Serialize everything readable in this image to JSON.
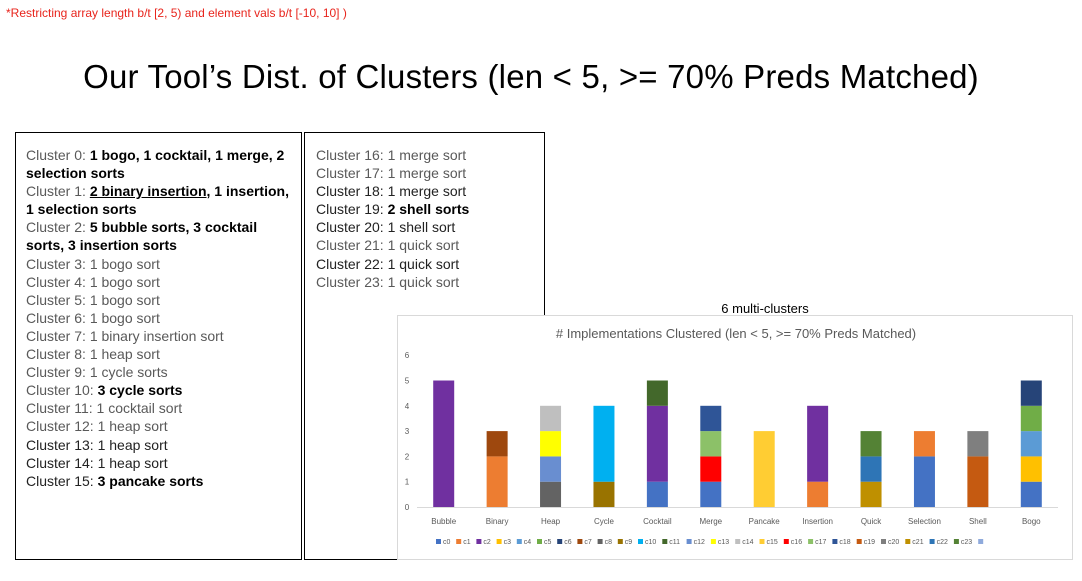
{
  "note": "*Restricting  array length b/t [2, 5) and element vals b/t [-10, 10] )",
  "title": "Our Tool’s Dist. of Clusters (len < 5, >= 70% Preds Matched)",
  "clusters_left": [
    {
      "label": "Cluster 0: ",
      "plain": "",
      "bold": "1 bogo, 1 cocktail, 1 merge, 2 selection sorts",
      "underline": ""
    },
    {
      "label": "Cluster 1: ",
      "plain": "",
      "underline": "2 binary insertion",
      "bold": ", 1 insertion, 1 selection sorts"
    },
    {
      "label": "Cluster 2: ",
      "plain": "",
      "bold": "5 bubble sorts, 3 cocktail sorts, 3 insertion sorts",
      "underline": ""
    },
    {
      "label": "Cluster 3: ",
      "plain": "1 bogo sort",
      "bold": "",
      "underline": ""
    },
    {
      "label": "Cluster 4: ",
      "plain": "1 bogo sort",
      "bold": "",
      "underline": ""
    },
    {
      "label": "Cluster 5: ",
      "plain": "1 bogo sort",
      "bold": "",
      "underline": ""
    },
    {
      "label": "Cluster 6: ",
      "plain": "1 bogo sort",
      "bold": "",
      "underline": ""
    },
    {
      "label": "Cluster 7: ",
      "plain": "1 binary insertion sort",
      "bold": "",
      "underline": ""
    },
    {
      "label": "Cluster 8: ",
      "plain": "1 heap sort",
      "bold": "",
      "underline": ""
    },
    {
      "label": "Cluster 9: ",
      "plain": "1 cycle sorts",
      "bold": "",
      "underline": ""
    },
    {
      "label": "Cluster 10: ",
      "plain": "",
      "bold": "3 cycle sorts",
      "underline": ""
    },
    {
      "label": "Cluster 11: ",
      "plain": "1 cocktail sort",
      "bold": "",
      "underline": ""
    },
    {
      "label": "Cluster 12: ",
      "plain": "1 heap sort",
      "bold": "",
      "underline": ""
    },
    {
      "label": "Cluster 13: ",
      "plain": "1 heap sort",
      "bold": "",
      "underline": "",
      "dark": true
    },
    {
      "label": "Cluster 14: ",
      "plain": "1 heap sort",
      "bold": "",
      "underline": "",
      "dark": true
    },
    {
      "label": "Cluster 15: ",
      "plain": "",
      "bold": "3 pancake sorts",
      "underline": "",
      "dark": true
    }
  ],
  "clusters_right": [
    {
      "label": "Cluster 16: ",
      "plain": "1 merge sort",
      "bold": "",
      "underline": ""
    },
    {
      "label": "Cluster 17: ",
      "plain": "1 merge sort",
      "bold": "",
      "underline": ""
    },
    {
      "label": "Cluster 18: ",
      "plain": "1 merge sort",
      "bold": "",
      "underline": "",
      "dark": true
    },
    {
      "label": "Cluster 19: ",
      "plain": "",
      "bold": "2 shell sorts",
      "underline": "",
      "dark": true
    },
    {
      "label": "Cluster 20: ",
      "plain": "1 shell sort",
      "bold": "",
      "underline": "",
      "dark": true
    },
    {
      "label": "Cluster 21: ",
      "plain": "1 quick sort",
      "bold": "",
      "underline": ""
    },
    {
      "label": "Cluster 22: ",
      "plain": "1 quick sort",
      "bold": "",
      "underline": "",
      "dark": true
    },
    {
      "label": "Cluster 23: ",
      "plain": "1 quick sort",
      "bold": "",
      "underline": ""
    }
  ],
  "multi_clusters_label": "6 multi-clusters",
  "chart_data": {
    "type": "bar",
    "stacked": true,
    "title": "# Implementations Clustered (len < 5, >= 70% Preds Matched)",
    "xlabel": "",
    "ylabel": "",
    "ylim": [
      0,
      6
    ],
    "yticks": [
      "0",
      "1",
      "2",
      "3",
      "4",
      "5",
      "6"
    ],
    "grid": false,
    "legend_position": "bottom",
    "categories": [
      "Bubble",
      "Binary",
      "Heap",
      "Cycle",
      "Cocktail",
      "Merge",
      "Pancake",
      "Insertion",
      "Quick",
      "Selection",
      "Shell",
      "Bogo"
    ],
    "series": [
      {
        "name": "c0",
        "color": "#4472C4",
        "values": [
          0,
          0,
          0,
          0,
          1,
          1,
          0,
          0,
          0,
          2,
          0,
          1
        ]
      },
      {
        "name": "c1",
        "color": "#ED7D31",
        "values": [
          0,
          2,
          0,
          0,
          0,
          0,
          0,
          1,
          0,
          1,
          0,
          0
        ]
      },
      {
        "name": "c2",
        "color": "#7030A0",
        "values": [
          5,
          0,
          0,
          0,
          3,
          0,
          0,
          3,
          0,
          0,
          0,
          0
        ]
      },
      {
        "name": "c3",
        "color": "#FFC000",
        "values": [
          0,
          0,
          0,
          0,
          0,
          0,
          0,
          0,
          0,
          0,
          0,
          1
        ]
      },
      {
        "name": "c4",
        "color": "#5B9BD5",
        "values": [
          0,
          0,
          0,
          0,
          0,
          0,
          0,
          0,
          0,
          0,
          0,
          1
        ]
      },
      {
        "name": "c5",
        "color": "#70AD47",
        "values": [
          0,
          0,
          0,
          0,
          0,
          0,
          0,
          0,
          0,
          0,
          0,
          1
        ]
      },
      {
        "name": "c6",
        "color": "#264478",
        "values": [
          0,
          0,
          0,
          0,
          0,
          0,
          0,
          0,
          0,
          0,
          0,
          1
        ]
      },
      {
        "name": "c7",
        "color": "#9E480E",
        "values": [
          0,
          1,
          0,
          0,
          0,
          0,
          0,
          0,
          0,
          0,
          0,
          0
        ]
      },
      {
        "name": "c8",
        "color": "#636363",
        "values": [
          0,
          0,
          1,
          0,
          0,
          0,
          0,
          0,
          0,
          0,
          0,
          0
        ]
      },
      {
        "name": "c9",
        "color": "#997300",
        "values": [
          0,
          0,
          0,
          1,
          0,
          0,
          0,
          0,
          0,
          0,
          0,
          0
        ]
      },
      {
        "name": "c10",
        "color": "#00B0F0",
        "values": [
          0,
          0,
          0,
          3,
          0,
          0,
          0,
          0,
          0,
          0,
          0,
          0
        ]
      },
      {
        "name": "c11",
        "color": "#43682B",
        "values": [
          0,
          0,
          0,
          0,
          1,
          0,
          0,
          0,
          0,
          0,
          0,
          0
        ]
      },
      {
        "name": "c12",
        "color": "#698ED0",
        "values": [
          0,
          0,
          1,
          0,
          0,
          0,
          0,
          0,
          0,
          0,
          0,
          0
        ]
      },
      {
        "name": "c13",
        "color": "#FFFF00",
        "values": [
          0,
          0,
          1,
          0,
          0,
          0,
          0,
          0,
          0,
          0,
          0,
          0
        ]
      },
      {
        "name": "c14",
        "color": "#BFBFBF",
        "values": [
          0,
          0,
          1,
          0,
          0,
          0,
          0,
          0,
          0,
          0,
          0,
          0
        ]
      },
      {
        "name": "c15",
        "color": "#FFCD33",
        "values": [
          0,
          0,
          0,
          0,
          0,
          0,
          3,
          0,
          0,
          0,
          0,
          0
        ]
      },
      {
        "name": "c16",
        "color": "#FF0000",
        "values": [
          0,
          0,
          0,
          0,
          0,
          1,
          0,
          0,
          0,
          0,
          0,
          0
        ]
      },
      {
        "name": "c17",
        "color": "#8CC168",
        "values": [
          0,
          0,
          0,
          0,
          0,
          1,
          0,
          0,
          0,
          0,
          0,
          0
        ]
      },
      {
        "name": "c18",
        "color": "#2F5597",
        "values": [
          0,
          0,
          0,
          0,
          0,
          1,
          0,
          0,
          0,
          0,
          0,
          0
        ]
      },
      {
        "name": "c19",
        "color": "#C55A11",
        "values": [
          0,
          0,
          0,
          0,
          0,
          0,
          0,
          0,
          0,
          0,
          2,
          0
        ]
      },
      {
        "name": "c20",
        "color": "#7F7F7F",
        "values": [
          0,
          0,
          0,
          0,
          0,
          0,
          0,
          0,
          0,
          0,
          1,
          0
        ]
      },
      {
        "name": "c21",
        "color": "#BF9000",
        "values": [
          0,
          0,
          0,
          0,
          0,
          0,
          0,
          0,
          1,
          0,
          0,
          0
        ]
      },
      {
        "name": "c22",
        "color": "#2E75B6",
        "values": [
          0,
          0,
          0,
          0,
          0,
          0,
          0,
          0,
          1,
          0,
          0,
          0
        ]
      },
      {
        "name": "c23",
        "color": "#548235",
        "values": [
          0,
          0,
          0,
          0,
          0,
          0,
          0,
          0,
          1,
          0,
          0,
          0
        ]
      },
      {
        "name": "",
        "color": "#8FAADC",
        "values": [
          0,
          0,
          0,
          0,
          0,
          0,
          0,
          0,
          0,
          0,
          0,
          0
        ]
      }
    ]
  }
}
